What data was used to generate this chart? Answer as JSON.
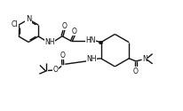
{
  "bg_color": "#ffffff",
  "line_color": "#111111",
  "lw": 1.0,
  "fs": 5.5,
  "figsize": [
    2.07,
    1.25
  ],
  "dpi": 100,
  "xlim": [
    0,
    10
  ],
  "ylim": [
    0,
    6
  ]
}
